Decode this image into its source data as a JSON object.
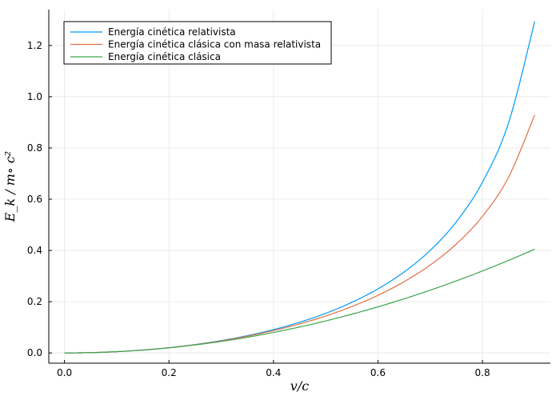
{
  "chart_data": {
    "type": "line",
    "title": "",
    "xlabel": "v/c",
    "ylabel": "E_k / m∘ c²",
    "xlim": [
      -0.03,
      0.93
    ],
    "ylim": [
      -0.04,
      1.34
    ],
    "xticks": [
      0.0,
      0.2,
      0.4,
      0.6,
      0.8
    ],
    "xtick_labels": [
      "0.0",
      "0.2",
      "0.4",
      "0.6",
      "0.8"
    ],
    "yticks": [
      0.0,
      0.2,
      0.4,
      0.6,
      0.8,
      1.0,
      1.2
    ],
    "ytick_labels": [
      "0.0",
      "0.2",
      "0.4",
      "0.6",
      "0.8",
      "1.0",
      "1.2"
    ],
    "grid": true,
    "legend_position": "top-left",
    "x": [
      0.0,
      0.05,
      0.1,
      0.15,
      0.2,
      0.25,
      0.3,
      0.35,
      0.4,
      0.45,
      0.5,
      0.55,
      0.6,
      0.65,
      0.7,
      0.75,
      0.8,
      0.85,
      0.9
    ],
    "series": [
      {
        "name": "Energía cinética relativista",
        "color": "#009af9",
        "values": [
          0.0,
          0.00125,
          0.00504,
          0.01144,
          0.02062,
          0.0328,
          0.04828,
          0.06752,
          0.09109,
          0.11978,
          0.1547,
          0.19738,
          0.25,
          0.3159,
          0.40028,
          0.51186,
          0.66667,
          0.89834,
          1.29416
        ]
      },
      {
        "name": "Energía cinética clásica con masa relativista",
        "color": "#e26f46",
        "values": [
          0.0,
          0.00125,
          0.00503,
          0.01138,
          0.02041,
          0.03227,
          0.04717,
          0.06539,
          0.08729,
          0.11339,
          0.14434,
          0.18107,
          0.225,
          0.27812,
          0.34311,
          0.42521,
          0.53333,
          0.6863,
          0.92923
        ]
      },
      {
        "name": "Energía cinética clásica",
        "color": "#3da44d",
        "values": [
          0.0,
          0.00125,
          0.005,
          0.01125,
          0.02,
          0.03125,
          0.045,
          0.06125,
          0.08,
          0.10125,
          0.125,
          0.15125,
          0.18,
          0.21125,
          0.245,
          0.28125,
          0.32,
          0.36125,
          0.405
        ]
      }
    ]
  }
}
